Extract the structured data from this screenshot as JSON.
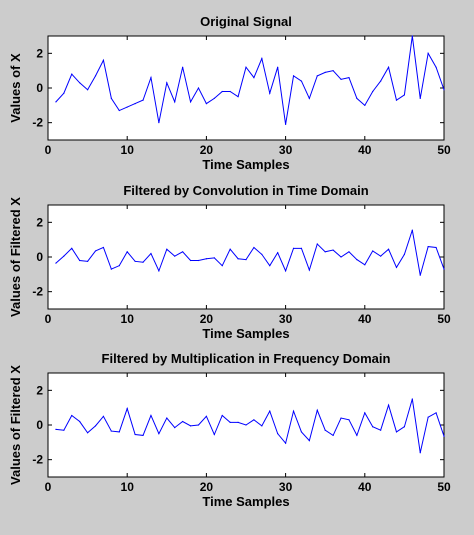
{
  "chart_data": [
    {
      "type": "line",
      "title": "Original Signal",
      "xlabel": "Time Samples",
      "ylabel": "Values of X",
      "xlim": [
        0,
        50
      ],
      "ylim": [
        -3,
        3
      ],
      "xticks": [
        "0",
        "10",
        "20",
        "30",
        "40",
        "50"
      ],
      "yticks": [
        "-2",
        "0",
        "2"
      ],
      "grid": false,
      "line_color": "#0000ff",
      "x": [
        1,
        2,
        3,
        4,
        5,
        6,
        7,
        8,
        9,
        10,
        11,
        12,
        13,
        14,
        15,
        16,
        17,
        18,
        19,
        20,
        21,
        22,
        23,
        24,
        25,
        26,
        27,
        28,
        29,
        30,
        31,
        32,
        33,
        34,
        35,
        36,
        37,
        38,
        39,
        40,
        41,
        42,
        43,
        44,
        45,
        46,
        47,
        48,
        49,
        50
      ],
      "y": [
        -0.8,
        -0.3,
        0.8,
        0.3,
        -0.1,
        0.7,
        1.6,
        -0.6,
        -1.3,
        -1.1,
        -0.9,
        -0.7,
        0.6,
        -2.0,
        0.3,
        -0.8,
        1.2,
        -0.8,
        0.0,
        -0.9,
        -0.6,
        -0.2,
        -0.2,
        -0.5,
        1.2,
        0.6,
        1.7,
        -0.3,
        1.2,
        -2.1,
        0.7,
        0.4,
        -0.6,
        0.7,
        0.9,
        1.0,
        0.5,
        0.6,
        -0.6,
        -1.0,
        -0.2,
        0.4,
        1.2,
        -0.7,
        -0.4,
        3.0,
        -0.6,
        2.0,
        1.2,
        -0.1
      ]
    },
    {
      "type": "line",
      "title": "Filtered by Convolution in Time Domain",
      "xlabel": "Time Samples",
      "ylabel": "Values of Filtered X",
      "xlim": [
        0,
        50
      ],
      "ylim": [
        -3,
        3
      ],
      "xticks": [
        "0",
        "10",
        "20",
        "30",
        "40",
        "50"
      ],
      "yticks": [
        "-2",
        "0",
        "2"
      ],
      "grid": false,
      "line_color": "#0000ff",
      "x": [
        1,
        2,
        3,
        4,
        5,
        6,
        7,
        8,
        9,
        10,
        11,
        12,
        13,
        14,
        15,
        16,
        17,
        18,
        19,
        20,
        21,
        22,
        23,
        24,
        25,
        26,
        27,
        28,
        29,
        30,
        31,
        32,
        33,
        34,
        35,
        36,
        37,
        38,
        39,
        40,
        41,
        42,
        43,
        44,
        45,
        46,
        47,
        48,
        49,
        50
      ],
      "y": [
        -0.35,
        0.05,
        0.5,
        -0.2,
        -0.25,
        0.35,
        0.55,
        -0.7,
        -0.5,
        0.3,
        -0.25,
        -0.3,
        0.2,
        -0.8,
        0.45,
        0.05,
        0.3,
        -0.2,
        -0.2,
        -0.1,
        -0.05,
        -0.5,
        0.45,
        -0.1,
        -0.15,
        0.55,
        0.15,
        -0.5,
        0.25,
        -0.8,
        0.5,
        0.5,
        -0.75,
        0.75,
        0.3,
        0.4,
        0.0,
        0.3,
        -0.15,
        -0.45,
        0.35,
        0.05,
        0.45,
        -0.6,
        0.15,
        1.55,
        -1.05,
        0.6,
        0.55,
        -0.7
      ]
    },
    {
      "type": "line",
      "title": "Filtered by Multiplication in Frequency Domain",
      "xlabel": "Time Samples",
      "ylabel": "Values of Filtered X",
      "xlim": [
        0,
        50
      ],
      "ylim": [
        -3,
        3
      ],
      "xticks": [
        "0",
        "10",
        "20",
        "30",
        "40",
        "50"
      ],
      "yticks": [
        "-2",
        "0",
        "2"
      ],
      "grid": false,
      "line_color": "#0000ff",
      "x": [
        1,
        2,
        3,
        4,
        5,
        6,
        7,
        8,
        9,
        10,
        11,
        12,
        13,
        14,
        15,
        16,
        17,
        18,
        19,
        20,
        21,
        22,
        23,
        24,
        25,
        26,
        27,
        28,
        29,
        30,
        31,
        32,
        33,
        34,
        35,
        36,
        37,
        38,
        39,
        40,
        41,
        42,
        43,
        44,
        45,
        46,
        47,
        48,
        49,
        50
      ],
      "y": [
        -0.25,
        -0.3,
        0.55,
        0.2,
        -0.45,
        -0.05,
        0.5,
        -0.35,
        -0.4,
        0.95,
        -0.55,
        -0.6,
        0.55,
        -0.5,
        0.4,
        -0.15,
        0.2,
        -0.05,
        0.0,
        0.5,
        -0.55,
        0.55,
        0.15,
        0.15,
        0.0,
        0.3,
        -0.05,
        0.8,
        -0.5,
        -1.05,
        0.8,
        -0.4,
        -0.9,
        0.85,
        -0.3,
        -0.6,
        0.4,
        0.3,
        -0.6,
        0.7,
        -0.1,
        -0.3,
        1.15,
        -0.4,
        -0.1,
        1.5,
        -1.6,
        0.45,
        0.7,
        -0.65
      ]
    }
  ]
}
